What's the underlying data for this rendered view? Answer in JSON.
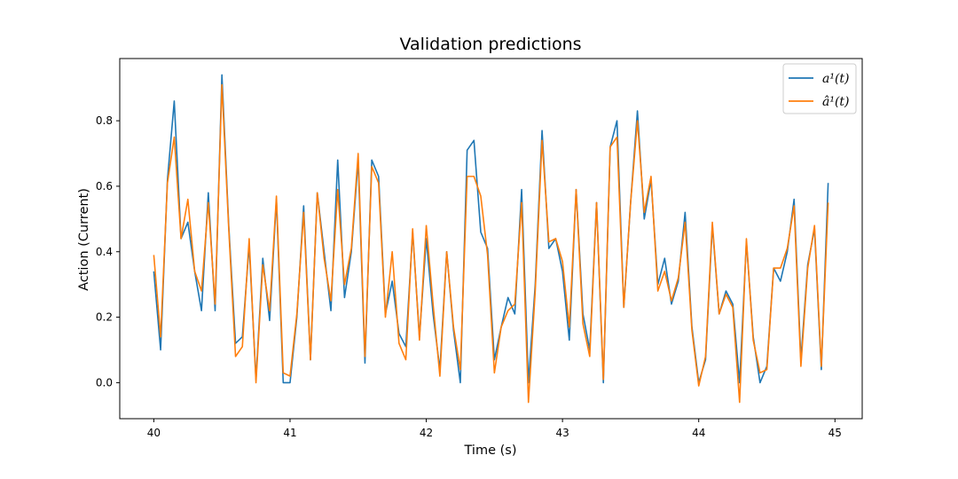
{
  "chart_data": {
    "type": "line",
    "title": "Validation predictions",
    "xlabel": "Time (s)",
    "ylabel": "Action (Current)",
    "xlim": [
      39.75,
      45.2
    ],
    "ylim": [
      -0.11,
      0.99
    ],
    "xticks": [
      40,
      41,
      42,
      43,
      44,
      45
    ],
    "yticks": [
      0.0,
      0.2,
      0.4,
      0.6,
      0.8
    ],
    "xtick_labels": [
      "40",
      "41",
      "42",
      "43",
      "44",
      "45"
    ],
    "ytick_labels": [
      "0.0",
      "0.2",
      "0.4",
      "0.6",
      "0.8"
    ],
    "grid": false,
    "legend_position": "top-right",
    "x": [
      40.0,
      40.05,
      40.1,
      40.15,
      40.2,
      40.25,
      40.3,
      40.35,
      40.4,
      40.45,
      40.5,
      40.55,
      40.6,
      40.65,
      40.7,
      40.75,
      40.8,
      40.85,
      40.9,
      40.95,
      41.0,
      41.05,
      41.1,
      41.15,
      41.2,
      41.25,
      41.3,
      41.35,
      41.4,
      41.45,
      41.5,
      41.55,
      41.6,
      41.65,
      41.7,
      41.75,
      41.8,
      41.85,
      41.9,
      41.95,
      42.0,
      42.05,
      42.1,
      42.15,
      42.2,
      42.25,
      42.3,
      42.35,
      42.4,
      42.45,
      42.5,
      42.55,
      42.6,
      42.65,
      42.7,
      42.75,
      42.8,
      42.85,
      42.9,
      42.95,
      43.0,
      43.05,
      43.1,
      43.15,
      43.2,
      43.25,
      43.3,
      43.35,
      43.4,
      43.45,
      43.5,
      43.55,
      43.6,
      43.65,
      43.7,
      43.75,
      43.8,
      43.85,
      43.9,
      43.95,
      44.0,
      44.05,
      44.1,
      44.15,
      44.2,
      44.25,
      44.3,
      44.35,
      44.4,
      44.45,
      44.5,
      44.55,
      44.6,
      44.65,
      44.7,
      44.75,
      44.8,
      44.85,
      44.9,
      44.95
    ],
    "series": [
      {
        "name": "a¹(t)",
        "color": "#1f77b4",
        "values": [
          0.34,
          0.1,
          0.62,
          0.86,
          0.44,
          0.49,
          0.34,
          0.22,
          0.58,
          0.22,
          0.94,
          0.48,
          0.12,
          0.14,
          0.42,
          0.01,
          0.38,
          0.19,
          0.56,
          0.0,
          0.0,
          0.2,
          0.54,
          0.07,
          0.58,
          0.4,
          0.22,
          0.68,
          0.26,
          0.4,
          0.68,
          0.06,
          0.68,
          0.63,
          0.21,
          0.31,
          0.15,
          0.11,
          0.46,
          0.14,
          0.44,
          0.21,
          0.04,
          0.4,
          0.16,
          0.0,
          0.71,
          0.74,
          0.46,
          0.41,
          0.07,
          0.17,
          0.26,
          0.21,
          0.59,
          0.0,
          0.3,
          0.77,
          0.41,
          0.44,
          0.34,
          0.13,
          0.59,
          0.21,
          0.1,
          0.55,
          0.0,
          0.72,
          0.8,
          0.23,
          0.55,
          0.83,
          0.5,
          0.62,
          0.3,
          0.38,
          0.24,
          0.31,
          0.52,
          0.17,
          0.0,
          0.07,
          0.48,
          0.21,
          0.28,
          0.24,
          0.0,
          0.43,
          0.14,
          0.0,
          0.05,
          0.35,
          0.31,
          0.4,
          0.56,
          0.07,
          0.36,
          0.47,
          0.04,
          0.61
        ]
      },
      {
        "name": "â¹(t)",
        "color": "#ff7f0e",
        "values": [
          0.39,
          0.14,
          0.61,
          0.75,
          0.44,
          0.56,
          0.34,
          0.28,
          0.55,
          0.24,
          0.91,
          0.47,
          0.08,
          0.11,
          0.44,
          0.0,
          0.36,
          0.22,
          0.57,
          0.03,
          0.02,
          0.21,
          0.52,
          0.07,
          0.58,
          0.38,
          0.25,
          0.59,
          0.3,
          0.41,
          0.7,
          0.08,
          0.66,
          0.61,
          0.2,
          0.4,
          0.12,
          0.07,
          0.47,
          0.13,
          0.48,
          0.24,
          0.02,
          0.4,
          0.17,
          0.04,
          0.63,
          0.63,
          0.57,
          0.39,
          0.03,
          0.17,
          0.22,
          0.24,
          0.55,
          -0.06,
          0.28,
          0.74,
          0.43,
          0.44,
          0.37,
          0.17,
          0.59,
          0.18,
          0.08,
          0.55,
          0.01,
          0.72,
          0.75,
          0.23,
          0.55,
          0.8,
          0.52,
          0.63,
          0.28,
          0.34,
          0.25,
          0.32,
          0.49,
          0.16,
          -0.01,
          0.08,
          0.49,
          0.21,
          0.27,
          0.23,
          -0.06,
          0.44,
          0.13,
          0.03,
          0.04,
          0.35,
          0.35,
          0.41,
          0.54,
          0.05,
          0.35,
          0.48,
          0.05,
          0.55
        ]
      }
    ]
  }
}
